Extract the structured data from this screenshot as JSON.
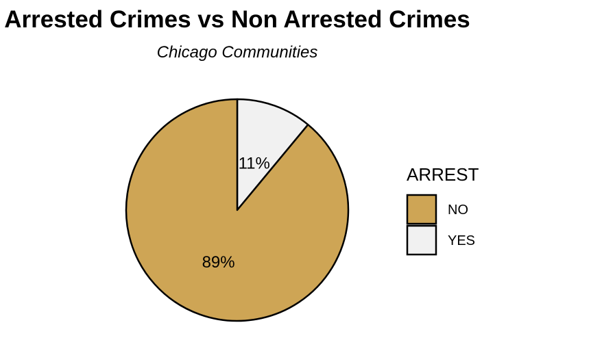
{
  "colors": {
    "NO": "#cea555",
    "YES": "#f1f1f1",
    "outline": "#000000"
  },
  "chart_data": {
    "type": "pie",
    "title": "Arrested Crimes vs Non Arrested Crimes",
    "subtitle": "Chicago Communities",
    "legend_title": "ARREST",
    "legend_position": "right",
    "slices": [
      {
        "category": "NO",
        "value": 89,
        "label": "89%"
      },
      {
        "category": "YES",
        "value": 11,
        "label": "11%"
      }
    ]
  }
}
